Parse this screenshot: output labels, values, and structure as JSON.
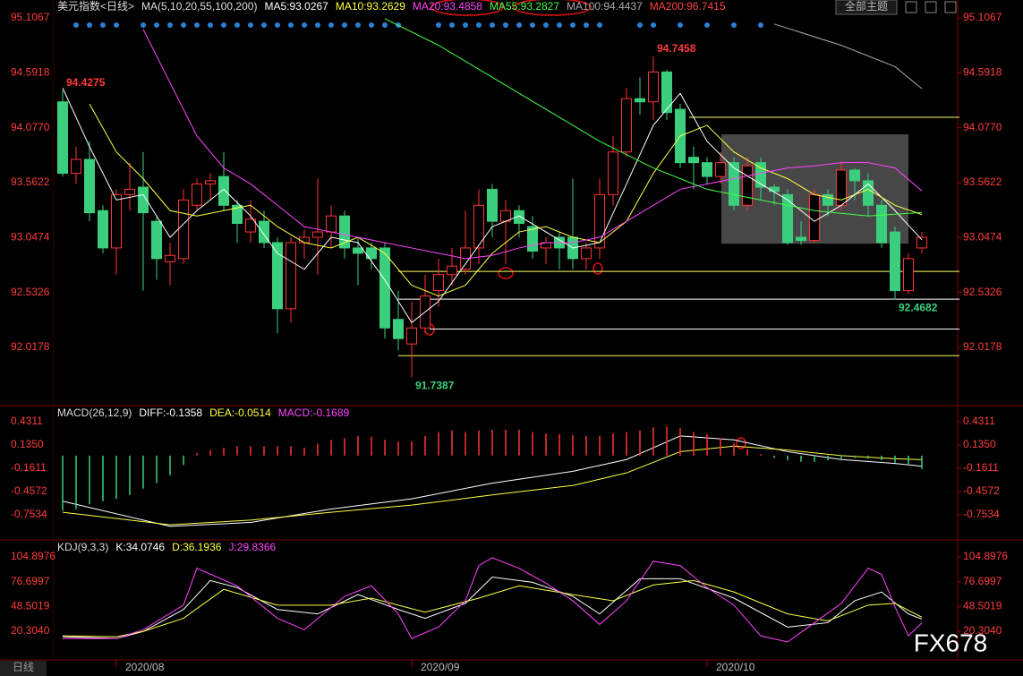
{
  "button": "全部主题",
  "watermark": "FX678",
  "period_tab": "日线",
  "chart_data": [
    {
      "type": "candlestick",
      "title": "美元指数<日线>",
      "subtitle": "MA(5,10,20,55,100,200)",
      "categories": [
        null,
        null,
        null,
        null,
        "2020/08",
        null,
        null,
        null,
        null,
        null,
        null,
        null,
        null,
        null,
        null,
        null,
        null,
        null,
        null,
        null,
        null,
        null,
        null,
        null,
        null,
        null,
        "2020/09",
        null,
        null,
        null,
        null,
        null,
        null,
        null,
        null,
        null,
        null,
        null,
        null,
        null,
        null,
        null,
        null,
        null,
        null,
        null,
        null,
        null,
        "2020/10",
        null,
        null,
        null,
        null,
        null,
        null,
        null,
        null,
        null,
        null,
        null,
        null,
        null,
        null,
        null,
        null
      ],
      "open": [
        94.32,
        93.65,
        93.78,
        93.3,
        92.95,
        93.45,
        93.52,
        93.2,
        92.82,
        92.85,
        93.35,
        93.55,
        93.62,
        93.35,
        93.1,
        93.2,
        93.0,
        92.38,
        93.0,
        93.05,
        93.1,
        93.25,
        92.95,
        92.95,
        92.95,
        92.28,
        92.05,
        92.2,
        92.55,
        92.7,
        92.75,
        92.95,
        93.5,
        93.2,
        93.3,
        93.15,
        92.95,
        93.05,
        93.05,
        92.85,
        92.95,
        93.45,
        93.85,
        94.35,
        94.32,
        94.6,
        94.25,
        93.8,
        93.75,
        93.62,
        93.75,
        93.35,
        93.75,
        93.52,
        93.45,
        93.05,
        93.02,
        93.45,
        93.35,
        93.68,
        93.58,
        93.35,
        93.1,
        92.55,
        92.95
      ],
      "high": [
        94.4275,
        93.9,
        93.95,
        93.35,
        93.5,
        93.75,
        93.85,
        93.25,
        93.0,
        93.5,
        93.6,
        93.65,
        93.85,
        93.4,
        93.4,
        93.3,
        93.05,
        93.05,
        93.12,
        93.6,
        93.35,
        93.3,
        93.05,
        93.0,
        93.0,
        92.55,
        92.45,
        92.7,
        92.85,
        92.95,
        93.3,
        93.5,
        93.55,
        93.4,
        93.35,
        93.25,
        93.05,
        93.1,
        93.6,
        93.0,
        93.6,
        94.0,
        94.45,
        94.55,
        94.7458,
        94.62,
        94.3,
        93.9,
        93.8,
        93.85,
        93.8,
        93.8,
        93.8,
        93.55,
        93.5,
        93.2,
        93.5,
        93.5,
        93.75,
        93.7,
        93.65,
        93.4,
        93.15,
        92.9,
        93.1
      ],
      "low": [
        93.62,
        93.55,
        93.2,
        92.9,
        92.7,
        93.3,
        92.55,
        92.65,
        92.6,
        92.8,
        93.3,
        93.4,
        93.3,
        93.0,
        93.0,
        92.95,
        92.15,
        92.25,
        92.85,
        92.7,
        92.95,
        92.85,
        92.6,
        92.75,
        92.1,
        91.99,
        91.7387,
        92.15,
        92.4,
        92.6,
        92.7,
        92.8,
        93.05,
        92.8,
        93.05,
        92.85,
        92.8,
        92.75,
        92.75,
        92.75,
        92.85,
        93.35,
        93.8,
        94.2,
        94.15,
        94.15,
        93.7,
        93.5,
        93.55,
        93.55,
        93.3,
        93.3,
        93.4,
        93.35,
        92.98,
        92.98,
        93.0,
        93.25,
        93.3,
        93.4,
        93.25,
        92.95,
        92.4682,
        92.52,
        92.9
      ],
      "close": [
        93.65,
        93.78,
        93.28,
        92.95,
        93.45,
        93.5,
        93.28,
        92.85,
        92.88,
        93.4,
        93.55,
        93.58,
        93.35,
        93.18,
        93.22,
        93.0,
        92.38,
        93.0,
        93.05,
        93.1,
        93.25,
        92.95,
        92.9,
        92.85,
        92.2,
        92.1,
        92.2,
        92.5,
        92.7,
        92.78,
        92.95,
        93.35,
        93.2,
        93.3,
        93.18,
        92.92,
        93.0,
        92.95,
        92.85,
        92.95,
        93.45,
        93.85,
        94.35,
        94.32,
        94.6,
        94.22,
        93.75,
        93.75,
        93.62,
        93.75,
        93.35,
        93.72,
        93.52,
        93.48,
        93.0,
        93.02,
        93.45,
        93.35,
        93.68,
        93.58,
        93.35,
        93.0,
        92.55,
        92.85,
        93.05
      ],
      "up_color": "#ff3232",
      "down_color": "#3bcf7d",
      "ylim": [
        91.497,
        95.191
      ],
      "yticks": [
        95.1067,
        94.5918,
        {
          "value": 94.077,
          "label": "94.0770"
        },
        93.5622,
        93.0474,
        92.5326,
        92.0178
      ],
      "series": [
        {
          "name": "MA5:93.0267",
          "color": "#ffffff",
          "x": [
            0,
            2,
            4,
            6,
            8,
            10,
            12,
            14,
            16,
            18,
            20,
            22,
            24,
            26,
            28,
            30,
            32,
            34,
            36,
            38,
            40,
            42,
            44,
            46,
            48,
            50,
            52,
            54,
            56,
            58,
            60,
            62,
            64
          ],
          "values": [
            94.45,
            93.9,
            93.4,
            93.45,
            93.05,
            93.3,
            93.5,
            93.25,
            92.9,
            92.75,
            93.05,
            93.0,
            92.65,
            92.25,
            92.45,
            92.8,
            93.15,
            93.25,
            93.1,
            92.95,
            93.0,
            93.55,
            94.1,
            94.4,
            93.95,
            93.7,
            93.55,
            93.4,
            93.2,
            93.35,
            93.55,
            93.3,
            93.0267
          ]
        },
        {
          "name": "MA10:93.2629",
          "color": "#ffff44",
          "x": [
            2,
            4,
            6,
            8,
            10,
            12,
            14,
            16,
            18,
            20,
            22,
            24,
            26,
            28,
            30,
            32,
            34,
            36,
            38,
            40,
            42,
            44,
            46,
            48,
            50,
            52,
            54,
            56,
            58,
            60,
            62,
            64
          ],
          "values": [
            94.3,
            93.85,
            93.6,
            93.3,
            93.25,
            93.3,
            93.35,
            93.15,
            93.0,
            92.95,
            93.05,
            92.9,
            92.6,
            92.5,
            92.6,
            92.9,
            93.1,
            93.15,
            93.05,
            93.0,
            93.2,
            93.65,
            94.0,
            94.1,
            93.85,
            93.7,
            93.6,
            93.45,
            93.4,
            93.5,
            93.35,
            93.2629
          ]
        },
        {
          "name": "MA20:93.4858",
          "color": "#ff44ff",
          "x": [
            6,
            8,
            10,
            12,
            14,
            16,
            18,
            20,
            22,
            24,
            26,
            28,
            30,
            32,
            34,
            36,
            38,
            40,
            42,
            44,
            46,
            48,
            50,
            52,
            54,
            56,
            58,
            60,
            62,
            64
          ],
          "values": [
            95.0,
            94.5,
            94.0,
            93.7,
            93.55,
            93.35,
            93.15,
            93.1,
            93.05,
            93.0,
            92.95,
            92.9,
            92.85,
            92.88,
            92.95,
            93.0,
            93.0,
            93.05,
            93.2,
            93.35,
            93.5,
            93.55,
            93.6,
            93.65,
            93.7,
            93.72,
            93.75,
            93.75,
            93.7,
            93.4858
          ]
        },
        {
          "name": "MA55:93.2827",
          "color": "#44ff44",
          "x": [
            24,
            28,
            32,
            36,
            40,
            44,
            48,
            52,
            56,
            60,
            64
          ],
          "values": [
            95.1,
            94.85,
            94.55,
            94.25,
            93.95,
            93.7,
            93.5,
            93.4,
            93.3,
            93.25,
            93.2827
          ]
        },
        {
          "name": "MA100:94.4437",
          "color": "#aaaaaa",
          "x": [
            53,
            58,
            62,
            64
          ],
          "values": [
            95.05,
            94.85,
            94.65,
            94.4437
          ]
        },
        {
          "name": "MA200:96.7415",
          "color": "#ff4444"
        }
      ],
      "levels": [
        {
          "value": 94.175,
          "color": "#ffff66"
        },
        {
          "value": 92.73,
          "color": "#ffff66"
        },
        {
          "value": 92.47,
          "color": "#ffffff"
        },
        {
          "value": 92.19,
          "color": "#ffffff"
        },
        {
          "value": 91.94,
          "color": "#ffff66"
        }
      ],
      "box": {
        "top": 94.015,
        "bottom": 92.99
      }
    },
    {
      "type": "macd",
      "title": "MACD(26,12,9)",
      "up_color": "#ff3232",
      "down_color": "#3bcf7d",
      "ylim": [
        -1.038,
        0.556
      ],
      "yticks": [
        0.4311,
        {
          "value": 0.135,
          "label": "0.1350"
        },
        -0.1611,
        -0.4572,
        -0.7534
      ],
      "series": [
        {
          "name": "DIFF:-0.1358",
          "color": "#ffffff",
          "x": [
            0,
            8,
            14,
            20,
            26,
            32,
            38,
            42,
            46,
            50,
            54,
            58,
            62,
            64
          ],
          "values": [
            -0.58,
            -0.9,
            -0.85,
            -0.68,
            -0.55,
            -0.35,
            -0.2,
            -0.05,
            0.25,
            0.2,
            0.05,
            -0.05,
            -0.1,
            -0.1358
          ]
        },
        {
          "name": "DEA:-0.0514",
          "color": "#ffff44",
          "x": [
            0,
            8,
            14,
            20,
            26,
            32,
            38,
            42,
            46,
            50,
            54,
            58,
            62,
            64
          ],
          "values": [
            -0.72,
            -0.88,
            -0.82,
            -0.72,
            -0.63,
            -0.5,
            -0.38,
            -0.22,
            0.05,
            0.12,
            0.07,
            0.0,
            -0.04,
            -0.0514
          ]
        },
        {
          "name": "MACD:-0.1689",
          "color": "#ff44ff",
          "values": [
            -0.7,
            -0.68,
            -0.62,
            -0.58,
            -0.55,
            -0.5,
            -0.42,
            -0.35,
            -0.25,
            -0.12,
            0.03,
            0.07,
            0.1,
            0.12,
            0.12,
            0.12,
            0.12,
            0.12,
            0.1,
            0.15,
            0.2,
            0.22,
            0.25,
            0.24,
            0.2,
            0.18,
            0.18,
            0.25,
            0.3,
            0.32,
            0.3,
            0.32,
            0.33,
            0.33,
            0.33,
            0.3,
            0.28,
            0.27,
            0.26,
            0.25,
            0.25,
            0.28,
            0.3,
            0.32,
            0.36,
            0.37,
            0.35,
            0.3,
            0.27,
            0.22,
            0.16,
            0.08,
            0.02,
            -0.03,
            -0.06,
            -0.08,
            -0.08,
            -0.06,
            -0.04,
            -0.03,
            -0.04,
            -0.06,
            -0.09,
            -0.12,
            -0.1689
          ]
        }
      ]
    },
    {
      "type": "kdj",
      "title": "KDJ(9,3,3)",
      "ylim": [
        -10.34,
        117.16
      ],
      "yticks": [
        104.8976,
        76.6997,
        48.5019,
        {
          "value": 20.304,
          "label": "20.3040"
        }
      ],
      "series": [
        {
          "name": "K:34.0746",
          "color": "#ffffff",
          "x": [
            0,
            4,
            6,
            9,
            11,
            13,
            16,
            19,
            22,
            25,
            27,
            30,
            32,
            35,
            38,
            40,
            43,
            46,
            50,
            54,
            57,
            59,
            61,
            63,
            64
          ],
          "values": [
            14,
            12,
            20,
            45,
            78,
            70,
            45,
            40,
            62,
            45,
            35,
            52,
            82,
            76,
            60,
            40,
            80,
            80,
            58,
            25,
            30,
            55,
            65,
            40,
            34.0746
          ]
        },
        {
          "name": "D:36.1936",
          "color": "#ffff44",
          "x": [
            0,
            4,
            6,
            9,
            12,
            16,
            20,
            23,
            27,
            31,
            34,
            38,
            41,
            44,
            47,
            50,
            54,
            57,
            60,
            62,
            64
          ],
          "values": [
            15,
            14,
            20,
            35,
            68,
            50,
            50,
            58,
            42,
            58,
            72,
            62,
            55,
            73,
            78,
            65,
            40,
            32,
            50,
            52,
            36.1936
          ]
        },
        {
          "name": "J:29.8366",
          "color": "#ff44ff",
          "x": [
            0,
            4,
            6,
            9,
            10,
            13,
            16,
            18,
            21,
            23,
            25,
            26,
            28,
            30,
            31,
            32,
            34,
            36,
            38,
            40,
            42,
            44,
            46,
            48,
            50,
            52,
            54,
            56,
            58,
            60,
            61,
            62,
            63,
            64
          ],
          "values": [
            12,
            12,
            22,
            50,
            92,
            72,
            35,
            22,
            60,
            72,
            40,
            12,
            25,
            55,
            95,
            104,
            92,
            75,
            55,
            28,
            55,
            100,
            95,
            70,
            50,
            15,
            8,
            30,
            52,
            92,
            85,
            48,
            15,
            29.8366
          ]
        }
      ]
    }
  ]
}
